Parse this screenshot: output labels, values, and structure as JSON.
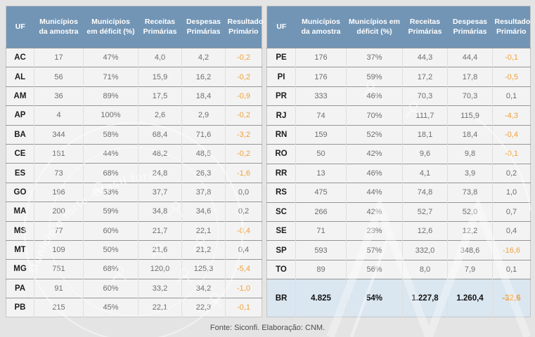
{
  "headers": [
    "UF",
    "Municípios da amostra",
    "Municípios em déficit (%)",
    "Receitas Primárias",
    "Despesas Primárias",
    "Resultado Primário"
  ],
  "left_rows": [
    [
      "AC",
      "17",
      "47%",
      "4,0",
      "4,2",
      "-0,2"
    ],
    [
      "AL",
      "56",
      "71%",
      "15,9",
      "16,2",
      "-0,2"
    ],
    [
      "AM",
      "36",
      "89%",
      "17,5",
      "18,4",
      "-0,9"
    ],
    [
      "AP",
      "4",
      "100%",
      "2,6",
      "2,9",
      "-0,2"
    ],
    [
      "BA",
      "344",
      "58%",
      "68,4",
      "71,6",
      "-3,2"
    ],
    [
      "CE",
      "181",
      "44%",
      "48,2",
      "48,5",
      "-0,2"
    ],
    [
      "ES",
      "73",
      "68%",
      "24,8",
      "26,3",
      "-1,6"
    ],
    [
      "GO",
      "196",
      "53%",
      "37,7",
      "37,8",
      "0,0"
    ],
    [
      "MA",
      "200",
      "59%",
      "34,8",
      "34,6",
      "0,2"
    ],
    [
      "MS",
      "77",
      "60%",
      "21,7",
      "22,1",
      "-0,4"
    ],
    [
      "MT",
      "109",
      "50%",
      "21,6",
      "21,2",
      "0,4"
    ],
    [
      "MG",
      "751",
      "68%",
      "120,0",
      "125,3",
      "-5,4"
    ],
    [
      "PA",
      "91",
      "60%",
      "33,2",
      "34,2",
      "-1,0"
    ],
    [
      "PB",
      "215",
      "45%",
      "22,1",
      "22,3",
      "-0,1"
    ]
  ],
  "right_rows": [
    [
      "PE",
      "176",
      "37%",
      "44,3",
      "44,4",
      "-0,1"
    ],
    [
      "PI",
      "176",
      "59%",
      "17,2",
      "17,8",
      "-0,5"
    ],
    [
      "PR",
      "333",
      "46%",
      "70,3",
      "70,3",
      "0,1"
    ],
    [
      "RJ",
      "74",
      "70%",
      "111,7",
      "115,9",
      "-4,3"
    ],
    [
      "RN",
      "159",
      "52%",
      "18,1",
      "18,4",
      "-0,4"
    ],
    [
      "RO",
      "50",
      "42%",
      "9,6",
      "9,8",
      "-0,1"
    ],
    [
      "RR",
      "13",
      "46%",
      "4,1",
      "3,9",
      "0,2"
    ],
    [
      "RS",
      "475",
      "44%",
      "74,8",
      "73,8",
      "1,0"
    ],
    [
      "SC",
      "266",
      "42%",
      "52,7",
      "52,0",
      "0,7"
    ],
    [
      "SE",
      "71",
      "23%",
      "12,6",
      "12,2",
      "0,4"
    ],
    [
      "SP",
      "593",
      "57%",
      "332,0",
      "348,6",
      "-16,6"
    ],
    [
      "TO",
      "89",
      "56%",
      "8,0",
      "7,9",
      "0,1"
    ]
  ],
  "total_row": [
    "BR",
    "4.825",
    "54%",
    "1.227,8",
    "1.260,4",
    "-32,6"
  ],
  "footer": "Fonte: Siconfi. Elaboração: CNM.",
  "watermark_text": "Município forte. Brasil forte.",
  "colors": {
    "header_bg": "#7295b5",
    "header_text": "#ffffff",
    "row_bg": "#f3f3f3",
    "page_bg": "#e4e4e4",
    "negative_value": "#f0a03c",
    "total_row_bg": "#dae6f0",
    "data_text": "#6e6e6e",
    "uf_text": "#1c1c1c"
  }
}
